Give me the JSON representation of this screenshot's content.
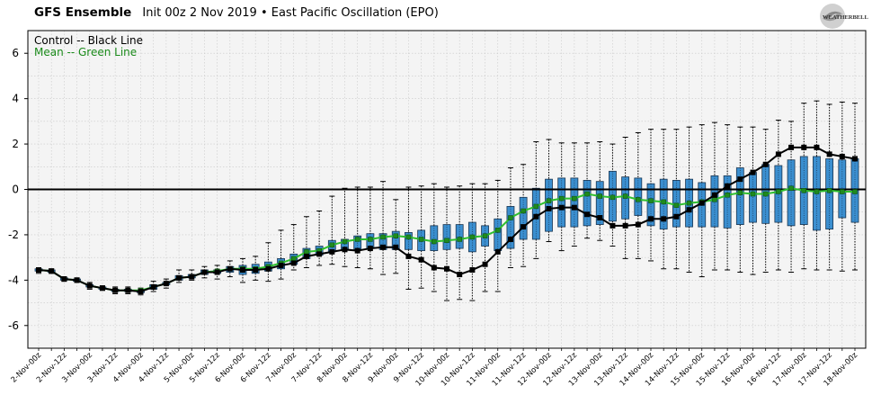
{
  "header": {
    "title": "GFS Ensemble",
    "subtitle": "Init 00z 2 Nov 2019 • East Pacific Oscillation (EPO)",
    "logo_text": "WEATHERBELL"
  },
  "chart_data": {
    "type": "box-and-line",
    "ylim": [
      -7,
      7
    ],
    "yticks": [
      -6,
      -4,
      -2,
      0,
      2,
      4,
      6
    ],
    "grid": true,
    "legend_position": "top-left",
    "legend": [
      {
        "label": "Control -- Black Line",
        "color": "#000000"
      },
      {
        "label": "Mean -- Green Line",
        "color": "#1a8a1a"
      }
    ],
    "tick_labels": [
      "2-Nov-00z",
      "2-Nov-12z",
      "3-Nov-00z",
      "3-Nov-12z",
      "4-Nov-00z",
      "4-Nov-12z",
      "5-Nov-00z",
      "5-Nov-12z",
      "6-Nov-00z",
      "6-Nov-12z",
      "7-Nov-00z",
      "7-Nov-12z",
      "8-Nov-00z",
      "8-Nov-12z",
      "9-Nov-00z",
      "9-Nov-12z",
      "10-Nov-00z",
      "10-Nov-12z",
      "11-Nov-00z",
      "11-Nov-12z",
      "12-Nov-00z",
      "12-Nov-12z",
      "13-Nov-00z",
      "13-Nov-12z",
      "14-Nov-00z",
      "14-Nov-12z",
      "15-Nov-00z",
      "15-Nov-12z",
      "16-Nov-00z",
      "16-Nov-12z",
      "17-Nov-00z",
      "17-Nov-12z",
      "18-Nov-00z"
    ],
    "x_hours": [
      0,
      6,
      12,
      18,
      24,
      30,
      36,
      42,
      48,
      54,
      60,
      66,
      72,
      78,
      84,
      90,
      96,
      102,
      108,
      114,
      120,
      126,
      132,
      138,
      144,
      150,
      156,
      162,
      168,
      174,
      180,
      186,
      192,
      198,
      204,
      210,
      216,
      222,
      228,
      234,
      240,
      246,
      252,
      258,
      264,
      270,
      276,
      282,
      288,
      294,
      300,
      306,
      312,
      318,
      324,
      330,
      336,
      342,
      348,
      354,
      360,
      366,
      372,
      378,
      384
    ],
    "control": [
      -3.55,
      -3.6,
      -3.95,
      -4.0,
      -4.25,
      -4.35,
      -4.45,
      -4.45,
      -4.5,
      -4.3,
      -4.15,
      -3.9,
      -3.85,
      -3.65,
      -3.65,
      -3.5,
      -3.55,
      -3.55,
      -3.5,
      -3.35,
      -3.25,
      -2.95,
      -2.85,
      -2.75,
      -2.65,
      -2.7,
      -2.6,
      -2.55,
      -2.55,
      -2.95,
      -3.1,
      -3.45,
      -3.5,
      -3.75,
      -3.55,
      -3.3,
      -2.75,
      -2.2,
      -1.65,
      -1.2,
      -0.85,
      -0.8,
      -0.8,
      -1.1,
      -1.25,
      -1.6,
      -1.6,
      -1.55,
      -1.3,
      -1.3,
      -1.2,
      -0.9,
      -0.6,
      -0.25,
      0.15,
      0.45,
      0.75,
      1.1,
      1.55,
      1.85,
      1.85,
      1.85,
      1.55,
      1.45,
      1.35
    ],
    "mean": [
      -3.55,
      -3.6,
      -3.95,
      -4.0,
      -4.25,
      -4.35,
      -4.45,
      -4.45,
      -4.45,
      -4.3,
      -4.15,
      -3.9,
      -3.85,
      -3.65,
      -3.6,
      -3.5,
      -3.5,
      -3.5,
      -3.4,
      -3.25,
      -3.05,
      -2.75,
      -2.7,
      -2.45,
      -2.3,
      -2.2,
      -2.2,
      -2.1,
      -2.05,
      -2.1,
      -2.2,
      -2.3,
      -2.25,
      -2.2,
      -2.1,
      -2.05,
      -1.8,
      -1.25,
      -0.95,
      -0.75,
      -0.5,
      -0.4,
      -0.4,
      -0.2,
      -0.3,
      -0.35,
      -0.3,
      -0.45,
      -0.5,
      -0.55,
      -0.7,
      -0.6,
      -0.55,
      -0.45,
      -0.25,
      -0.15,
      -0.2,
      -0.2,
      -0.1,
      0.05,
      -0.05,
      -0.1,
      -0.05,
      -0.1,
      -0.1
    ],
    "q1": [
      -3.6,
      -3.65,
      -4.0,
      -4.05,
      -4.3,
      -4.4,
      -4.5,
      -4.5,
      -4.55,
      -4.4,
      -4.2,
      -4.0,
      -3.9,
      -3.75,
      -3.7,
      -3.65,
      -3.75,
      -3.7,
      -3.6,
      -3.5,
      -3.3,
      -3.05,
      -2.9,
      -2.75,
      -2.65,
      -2.65,
      -2.6,
      -2.65,
      -2.65,
      -2.65,
      -2.7,
      -2.7,
      -2.65,
      -2.6,
      -2.75,
      -2.5,
      -2.7,
      -2.6,
      -2.2,
      -2.2,
      -1.85,
      -1.65,
      -1.65,
      -1.6,
      -1.55,
      -1.4,
      -1.3,
      -1.15,
      -1.6,
      -1.75,
      -1.65,
      -1.65,
      -1.65,
      -1.65,
      -1.7,
      -1.55,
      -1.45,
      -1.5,
      -1.45,
      -1.6,
      -1.55,
      -1.8,
      -1.75,
      -1.25,
      -1.45
    ],
    "q3": [
      -3.5,
      -3.55,
      -3.9,
      -3.95,
      -4.2,
      -4.3,
      -4.4,
      -4.4,
      -4.45,
      -4.2,
      -4.1,
      -3.8,
      -3.75,
      -3.55,
      -3.55,
      -3.4,
      -3.35,
      -3.3,
      -3.2,
      -3.05,
      -2.85,
      -2.6,
      -2.5,
      -2.25,
      -2.2,
      -2.05,
      -1.95,
      -1.95,
      -1.85,
      -1.9,
      -1.8,
      -1.6,
      -1.55,
      -1.55,
      -1.45,
      -1.6,
      -1.3,
      -0.75,
      -0.35,
      0.05,
      0.45,
      0.5,
      0.5,
      0.4,
      0.35,
      0.8,
      0.55,
      0.5,
      0.25,
      0.45,
      0.4,
      0.45,
      0.3,
      0.6,
      0.6,
      0.95,
      0.75,
      1.1,
      1.05,
      1.3,
      1.45,
      1.45,
      1.35,
      1.3,
      1.35
    ],
    "min": [
      -3.7,
      -3.7,
      -4.05,
      -4.1,
      -4.4,
      -4.45,
      -4.6,
      -4.6,
      -4.65,
      -4.5,
      -4.35,
      -4.1,
      -4.0,
      -3.9,
      -3.95,
      -3.85,
      -4.1,
      -4.0,
      -4.05,
      -3.95,
      -3.55,
      -3.45,
      -3.35,
      -3.3,
      -3.4,
      -3.45,
      -3.5,
      -3.75,
      -3.7,
      -4.4,
      -4.35,
      -4.5,
      -4.9,
      -4.85,
      -4.9,
      -4.5,
      -4.5,
      -3.45,
      -3.4,
      -3.05,
      -2.3,
      -2.7,
      -2.5,
      -2.15,
      -2.25,
      -2.5,
      -3.05,
      -3.05,
      -3.15,
      -3.5,
      -3.5,
      -3.65,
      -3.85,
      -3.55,
      -3.55,
      -3.65,
      -3.75,
      -3.65,
      -3.55,
      -3.65,
      -3.5,
      -3.55,
      -3.55,
      -3.6,
      -3.55
    ],
    "max": [
      -3.45,
      -3.5,
      -3.85,
      -3.9,
      -4.1,
      -4.25,
      -4.3,
      -4.3,
      -4.35,
      -4.05,
      -3.95,
      -3.55,
      -3.55,
      -3.4,
      -3.35,
      -3.15,
      -3.05,
      -2.95,
      -2.35,
      -1.8,
      -1.55,
      -1.2,
      -0.95,
      -0.3,
      0.05,
      0.1,
      0.1,
      0.35,
      -0.45,
      0.1,
      0.15,
      0.25,
      0.1,
      0.15,
      0.25,
      0.25,
      0.4,
      0.95,
      1.1,
      2.1,
      2.2,
      2.05,
      2.05,
      2.05,
      2.1,
      2.0,
      2.3,
      2.5,
      2.65,
      2.65,
      2.65,
      2.75,
      2.85,
      2.95,
      2.85,
      2.75,
      2.75,
      2.65,
      3.05,
      3.0,
      3.8,
      3.9,
      3.75,
      3.85,
      3.8
    ]
  }
}
